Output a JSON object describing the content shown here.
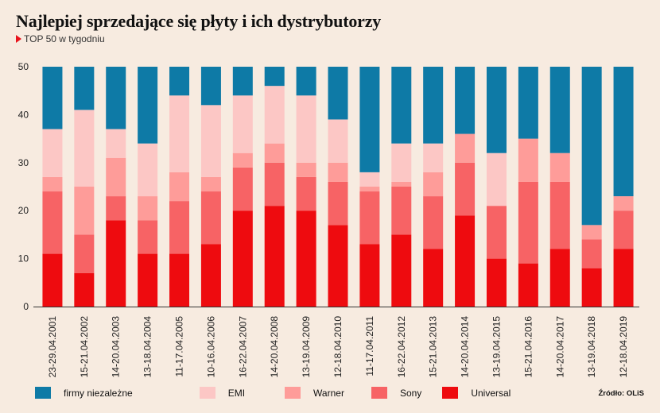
{
  "header": {
    "title": "Najlepiej sprzedające się płyty i ich dystrybutorzy",
    "subtitle": "TOP 50 w tygodniu"
  },
  "source": "Źródło: OLiS",
  "colors": {
    "background": "#f7ebe0",
    "firmy niezależne": "#0e7aa6",
    "EMI": "#fcc7c5",
    "Warner": "#fe9c99",
    "Sony": "#f76365",
    "Universal": "#ee0b0f",
    "subtitle_marker": "#e8131c"
  },
  "chart_data": {
    "type": "bar",
    "stacked": true,
    "ylim": [
      0,
      50
    ],
    "yticks": [
      0,
      10,
      20,
      30,
      40,
      50
    ],
    "grid": false,
    "legend_position": "bottom",
    "categories": [
      "23-29.04.2001",
      "15-21.04.2002",
      "14-20.04.2003",
      "13-18.04.2004",
      "11-17.04.2005",
      "10-16.04.2006",
      "16-22.04.2007",
      "14-20.04.2008",
      "13-19.04.2009",
      "12-18.04.2010",
      "11-17.04.2011",
      "16-22.04.2012",
      "15-21.04.2013",
      "14-20.04.2014",
      "13-19.04.2015",
      "15-21.04.2016",
      "14-20.04.2017",
      "13-19.04.2018",
      "12-18.04.2019"
    ],
    "series": [
      {
        "name": "Universal",
        "values": [
          11,
          7,
          18,
          11,
          11,
          13,
          20,
          21,
          20,
          17,
          13,
          15,
          12,
          19,
          10,
          9,
          12,
          8,
          12
        ]
      },
      {
        "name": "Sony",
        "values": [
          13,
          8,
          5,
          7,
          11,
          11,
          9,
          9,
          7,
          9,
          11,
          10,
          11,
          11,
          11,
          17,
          14,
          6,
          8
        ]
      },
      {
        "name": "Warner",
        "values": [
          3,
          10,
          8,
          5,
          6,
          3,
          3,
          4,
          3,
          4,
          1,
          1,
          5,
          6,
          0,
          9,
          6,
          3,
          3
        ]
      },
      {
        "name": "EMI",
        "values": [
          10,
          16,
          6,
          11,
          16,
          15,
          12,
          12,
          14,
          9,
          3,
          8,
          6,
          0,
          11,
          0,
          0,
          0,
          0
        ]
      },
      {
        "name": "firmy niezależne",
        "values": [
          13,
          9,
          13,
          16,
          6,
          8,
          6,
          4,
          6,
          11,
          22,
          16,
          16,
          14,
          18,
          15,
          18,
          33,
          27
        ]
      }
    ]
  },
  "legend": [
    {
      "label": "firmy niezależne",
      "series": "firmy niezależne"
    },
    {
      "label": "EMI",
      "series": "EMI"
    },
    {
      "label": "Warner",
      "series": "Warner"
    },
    {
      "label": "Sony",
      "series": "Sony"
    },
    {
      "label": "Universal",
      "series": "Universal"
    }
  ]
}
